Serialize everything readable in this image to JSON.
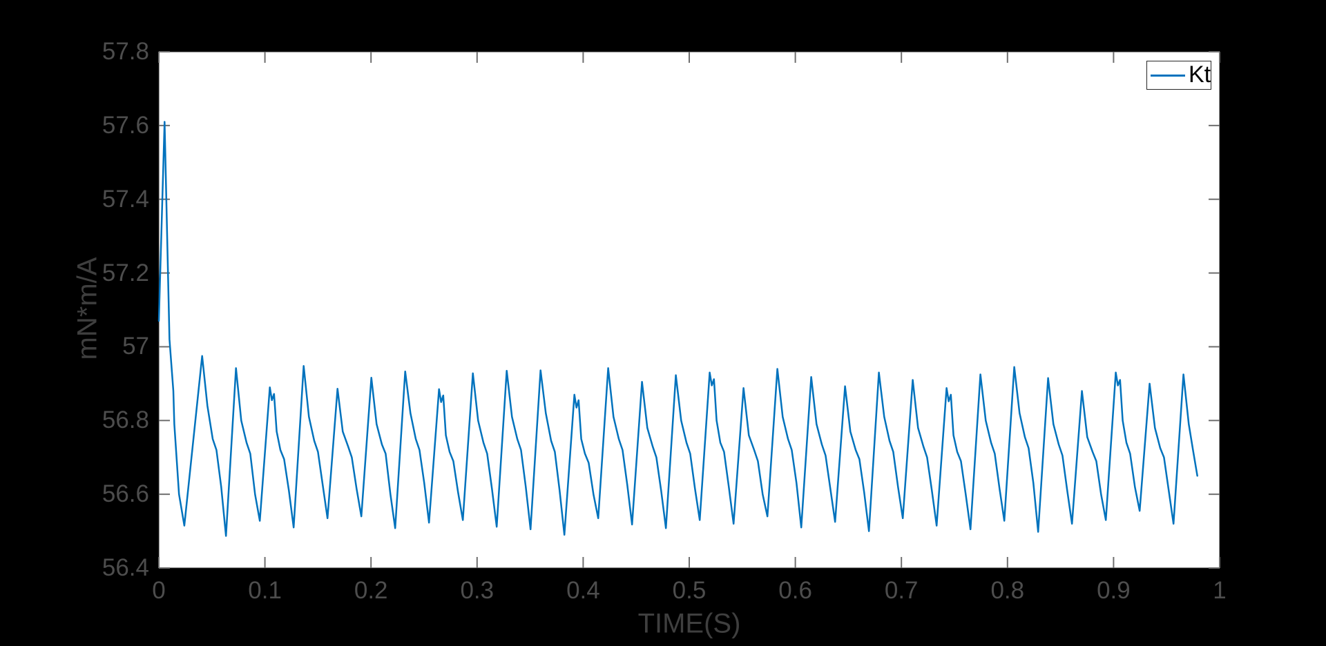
{
  "colors": {
    "background": "#000000",
    "plot_background": "#ffffff",
    "accent": "#0072bd",
    "tick_label": "#4d4d4d",
    "axis_label": "#3f3f3f",
    "tick_mark": "#6e6e6e",
    "legend_border": "#262626",
    "legend_text": "#000000"
  },
  "legend": {
    "label": "Kt",
    "position": "top-right"
  },
  "chart_data": {
    "type": "line",
    "title": "",
    "xlabel": "TIME(S)",
    "ylabel": "mN*m/A",
    "xlim": [
      0,
      1
    ],
    "ylim": [
      56.4,
      57.8
    ],
    "grid": false,
    "legend_position": "top-right",
    "x_ticks": [
      0,
      0.1,
      0.2,
      0.3,
      0.4,
      0.5,
      0.6,
      0.7,
      0.8,
      0.9,
      1
    ],
    "x_tick_labels": [
      "0",
      "0.1",
      "0.2",
      "0.3",
      "0.4",
      "0.5",
      "0.6",
      "0.7",
      "0.8",
      "0.9",
      "1"
    ],
    "y_ticks": [
      56.4,
      56.6,
      56.8,
      57,
      57.2,
      57.4,
      57.6,
      57.8
    ],
    "y_tick_labels": [
      "56.4",
      "56.6",
      "56.8",
      "57",
      "57.2",
      "57.4",
      "57.6",
      "57.8"
    ],
    "series": [
      {
        "name": "Kt",
        "color": "#0072bd",
        "line_width": 2.5,
        "points": [
          [
            0,
            57.07
          ],
          [
            0.0054,
            57.61
          ],
          [
            0.01,
            57.02
          ],
          [
            0.0137,
            56.88
          ],
          [
            0.0146,
            56.79
          ],
          [
            0.019,
            56.6
          ],
          [
            0.024,
            56.515
          ],
          [
            0.0408,
            56.975
          ],
          [
            0.0458,
            56.84
          ],
          [
            0.0508,
            56.75
          ],
          [
            0.0543,
            56.72
          ],
          [
            0.0588,
            56.62
          ],
          [
            0.0633,
            56.487
          ],
          [
            0.0727,
            56.942
          ],
          [
            0.0777,
            56.8
          ],
          [
            0.0827,
            56.74
          ],
          [
            0.0862,
            56.71
          ],
          [
            0.0907,
            56.6
          ],
          [
            0.0952,
            56.528
          ],
          [
            0.1046,
            56.89
          ],
          [
            0.1066,
            56.855
          ],
          [
            0.1086,
            56.872
          ],
          [
            0.1111,
            56.77
          ],
          [
            0.1146,
            56.72
          ],
          [
            0.1181,
            56.695
          ],
          [
            0.1226,
            56.61
          ],
          [
            0.1271,
            56.51
          ],
          [
            0.1365,
            56.948
          ],
          [
            0.1415,
            56.81
          ],
          [
            0.1465,
            56.745
          ],
          [
            0.15,
            56.715
          ],
          [
            0.1545,
            56.625
          ],
          [
            0.159,
            56.535
          ],
          [
            0.1684,
            56.886
          ],
          [
            0.1734,
            56.77
          ],
          [
            0.1784,
            56.73
          ],
          [
            0.1819,
            56.7
          ],
          [
            0.1864,
            56.615
          ],
          [
            0.1909,
            56.54
          ],
          [
            0.2003,
            56.916
          ],
          [
            0.2053,
            56.79
          ],
          [
            0.2103,
            56.735
          ],
          [
            0.2138,
            56.71
          ],
          [
            0.2183,
            56.6
          ],
          [
            0.2228,
            56.508
          ],
          [
            0.2322,
            56.933
          ],
          [
            0.2372,
            56.82
          ],
          [
            0.2422,
            56.75
          ],
          [
            0.2457,
            56.72
          ],
          [
            0.2502,
            56.63
          ],
          [
            0.2547,
            56.523
          ],
          [
            0.2641,
            56.885
          ],
          [
            0.2661,
            56.85
          ],
          [
            0.2681,
            56.868
          ],
          [
            0.2706,
            56.76
          ],
          [
            0.2741,
            56.715
          ],
          [
            0.2776,
            56.69
          ],
          [
            0.2821,
            56.605
          ],
          [
            0.2866,
            56.53
          ],
          [
            0.296,
            56.928
          ],
          [
            0.301,
            56.8
          ],
          [
            0.306,
            56.74
          ],
          [
            0.3095,
            56.71
          ],
          [
            0.314,
            56.615
          ],
          [
            0.3185,
            56.512
          ],
          [
            0.3279,
            56.935
          ],
          [
            0.3329,
            56.81
          ],
          [
            0.3379,
            56.75
          ],
          [
            0.3414,
            56.72
          ],
          [
            0.3459,
            56.62
          ],
          [
            0.3504,
            56.505
          ],
          [
            0.3598,
            56.936
          ],
          [
            0.3648,
            56.82
          ],
          [
            0.3698,
            56.745
          ],
          [
            0.3733,
            56.715
          ],
          [
            0.3778,
            56.61
          ],
          [
            0.3823,
            56.49
          ],
          [
            0.3917,
            56.87
          ],
          [
            0.3937,
            56.835
          ],
          [
            0.3957,
            56.855
          ],
          [
            0.3982,
            56.75
          ],
          [
            0.4017,
            56.71
          ],
          [
            0.4052,
            56.685
          ],
          [
            0.4097,
            56.6
          ],
          [
            0.4142,
            56.535
          ],
          [
            0.4236,
            56.942
          ],
          [
            0.4286,
            56.81
          ],
          [
            0.4336,
            56.75
          ],
          [
            0.4371,
            56.72
          ],
          [
            0.4416,
            56.625
          ],
          [
            0.4461,
            56.518
          ],
          [
            0.4555,
            56.905
          ],
          [
            0.4605,
            56.78
          ],
          [
            0.4655,
            56.73
          ],
          [
            0.469,
            56.7
          ],
          [
            0.4735,
            56.61
          ],
          [
            0.478,
            56.508
          ],
          [
            0.4874,
            56.923
          ],
          [
            0.4924,
            56.8
          ],
          [
            0.4974,
            56.74
          ],
          [
            0.5009,
            56.71
          ],
          [
            0.5054,
            56.615
          ],
          [
            0.5099,
            56.53
          ],
          [
            0.5193,
            56.93
          ],
          [
            0.5213,
            56.895
          ],
          [
            0.5233,
            56.912
          ],
          [
            0.5258,
            56.8
          ],
          [
            0.5293,
            56.74
          ],
          [
            0.5328,
            56.715
          ],
          [
            0.5373,
            56.62
          ],
          [
            0.5418,
            56.52
          ],
          [
            0.5512,
            56.888
          ],
          [
            0.5562,
            56.76
          ],
          [
            0.5612,
            56.72
          ],
          [
            0.5647,
            56.69
          ],
          [
            0.5692,
            56.6
          ],
          [
            0.5737,
            56.54
          ],
          [
            0.5831,
            56.94
          ],
          [
            0.5881,
            56.81
          ],
          [
            0.5931,
            56.75
          ],
          [
            0.5966,
            56.72
          ],
          [
            0.6011,
            56.63
          ],
          [
            0.6056,
            56.51
          ],
          [
            0.615,
            56.918
          ],
          [
            0.62,
            56.79
          ],
          [
            0.625,
            56.735
          ],
          [
            0.6285,
            56.705
          ],
          [
            0.633,
            56.615
          ],
          [
            0.6375,
            56.525
          ],
          [
            0.6469,
            56.893
          ],
          [
            0.6519,
            56.77
          ],
          [
            0.6569,
            56.72
          ],
          [
            0.6604,
            56.695
          ],
          [
            0.6649,
            56.605
          ],
          [
            0.6694,
            56.5
          ],
          [
            0.6788,
            56.93
          ],
          [
            0.6838,
            56.81
          ],
          [
            0.6888,
            56.745
          ],
          [
            0.6923,
            56.715
          ],
          [
            0.6968,
            56.62
          ],
          [
            0.7013,
            56.535
          ],
          [
            0.7107,
            56.91
          ],
          [
            0.7157,
            56.78
          ],
          [
            0.7207,
            56.73
          ],
          [
            0.7242,
            56.7
          ],
          [
            0.7287,
            56.61
          ],
          [
            0.7332,
            56.515
          ],
          [
            0.7426,
            56.888
          ],
          [
            0.7446,
            56.852
          ],
          [
            0.7466,
            56.87
          ],
          [
            0.7491,
            56.76
          ],
          [
            0.7526,
            56.715
          ],
          [
            0.7561,
            56.69
          ],
          [
            0.7606,
            56.6
          ],
          [
            0.7651,
            56.505
          ],
          [
            0.7745,
            56.925
          ],
          [
            0.7795,
            56.8
          ],
          [
            0.7845,
            56.74
          ],
          [
            0.788,
            56.71
          ],
          [
            0.7925,
            56.615
          ],
          [
            0.797,
            56.528
          ],
          [
            0.8064,
            56.945
          ],
          [
            0.8114,
            56.82
          ],
          [
            0.8164,
            56.755
          ],
          [
            0.8199,
            56.725
          ],
          [
            0.8244,
            56.63
          ],
          [
            0.8289,
            56.498
          ],
          [
            0.8383,
            56.915
          ],
          [
            0.8433,
            56.79
          ],
          [
            0.8483,
            56.735
          ],
          [
            0.8518,
            56.705
          ],
          [
            0.8563,
            56.61
          ],
          [
            0.8608,
            56.52
          ],
          [
            0.8702,
            56.88
          ],
          [
            0.8752,
            56.755
          ],
          [
            0.8802,
            56.715
          ],
          [
            0.8837,
            56.69
          ],
          [
            0.8882,
            56.6
          ],
          [
            0.8927,
            56.53
          ],
          [
            0.9021,
            56.93
          ],
          [
            0.9041,
            56.895
          ],
          [
            0.9061,
            56.91
          ],
          [
            0.9086,
            56.8
          ],
          [
            0.9121,
            56.74
          ],
          [
            0.9156,
            56.71
          ],
          [
            0.9201,
            56.62
          ],
          [
            0.9246,
            56.555
          ],
          [
            0.934,
            56.9
          ],
          [
            0.939,
            56.78
          ],
          [
            0.944,
            56.725
          ],
          [
            0.9475,
            56.7
          ],
          [
            0.952,
            56.61
          ],
          [
            0.9565,
            56.52
          ],
          [
            0.9659,
            56.925
          ],
          [
            0.9709,
            56.79
          ],
          [
            0.9749,
            56.72
          ],
          [
            0.979,
            56.65
          ]
        ]
      }
    ]
  }
}
